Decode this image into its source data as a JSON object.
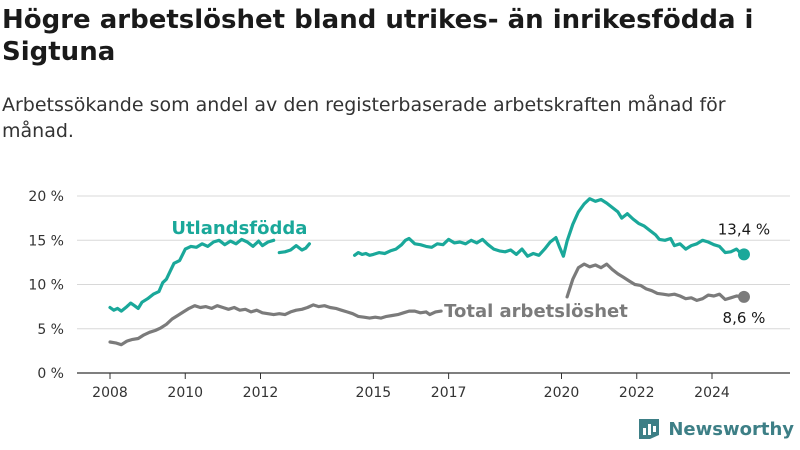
{
  "header": {
    "title": "Högre arbetslöshet bland utrikes- än inrikesfödda i Sigtuna",
    "subtitle": "Arbetssökande som andel av den registerbaserade arbetskraften månad för månad."
  },
  "brand": {
    "name": "Newsworthy",
    "icon": "newsworthy-logo-icon",
    "color": "#3d7f86"
  },
  "colors": {
    "utlandsfodda": "#1aa89a",
    "total": "#7b7b7b",
    "grid": "#d8d8d8",
    "axis": "#333333"
  },
  "chart_data": {
    "type": "line",
    "title": "Högre arbetslöshet bland utrikes- än inrikesfödda i Sigtuna",
    "subtitle": "Arbetssökande som andel av den registerbaserade arbetskraften månad för månad.",
    "x_ticks": [
      2008,
      2010,
      2012,
      2015,
      2017,
      2020,
      2022,
      2024
    ],
    "x_tick_labels": [
      "2008",
      "2010",
      "2012",
      "2015",
      "2017",
      "2020",
      "2022",
      "2024"
    ],
    "y_ticks": [
      0,
      5,
      10,
      15,
      20
    ],
    "y_tick_labels": [
      "0 %",
      "5 %",
      "10 %",
      "15 %",
      "20 %"
    ],
    "xlim": [
      2007.5,
      2025.5
    ],
    "ylim": [
      0,
      20
    ],
    "grid": "horizontal",
    "legend": "direct labels",
    "series": [
      {
        "name": "Utlandsfödda",
        "color": "#1aa89a",
        "end_label": "13,4 %",
        "segments": [
          [
            [
              2008.0,
              7.4
            ],
            [
              2008.1,
              7.1
            ],
            [
              2008.2,
              7.3
            ],
            [
              2008.3,
              7.0
            ],
            [
              2008.45,
              7.5
            ],
            [
              2008.55,
              7.9
            ],
            [
              2008.65,
              7.6
            ],
            [
              2008.75,
              7.3
            ],
            [
              2008.85,
              8.0
            ],
            [
              2009.0,
              8.4
            ],
            [
              2009.15,
              8.9
            ],
            [
              2009.3,
              9.2
            ],
            [
              2009.4,
              10.2
            ],
            [
              2009.5,
              10.6
            ],
            [
              2009.6,
              11.5
            ],
            [
              2009.7,
              12.4
            ],
            [
              2009.85,
              12.7
            ],
            [
              2010.0,
              14.0
            ],
            [
              2010.15,
              14.3
            ],
            [
              2010.3,
              14.2
            ],
            [
              2010.45,
              14.6
            ],
            [
              2010.6,
              14.3
            ],
            [
              2010.75,
              14.8
            ],
            [
              2010.9,
              15.0
            ],
            [
              2011.05,
              14.5
            ],
            [
              2011.2,
              14.9
            ],
            [
              2011.35,
              14.6
            ],
            [
              2011.5,
              15.1
            ],
            [
              2011.65,
              14.8
            ],
            [
              2011.8,
              14.3
            ],
            [
              2011.95,
              14.9
            ],
            [
              2012.05,
              14.4
            ],
            [
              2012.2,
              14.8
            ],
            [
              2012.35,
              15.0
            ]
          ],
          [
            [
              2012.5,
              13.6
            ],
            [
              2012.65,
              13.7
            ],
            [
              2012.8,
              13.9
            ],
            [
              2012.95,
              14.4
            ],
            [
              2013.1,
              13.9
            ],
            [
              2013.2,
              14.1
            ],
            [
              2013.3,
              14.6
            ]
          ],
          [
            [
              2014.5,
              13.3
            ],
            [
              2014.6,
              13.6
            ],
            [
              2014.7,
              13.4
            ],
            [
              2014.8,
              13.5
            ],
            [
              2014.9,
              13.3
            ],
            [
              2015.0,
              13.4
            ],
            [
              2015.15,
              13.6
            ],
            [
              2015.3,
              13.5
            ],
            [
              2015.45,
              13.8
            ],
            [
              2015.6,
              14.0
            ],
            [
              2015.75,
              14.5
            ],
            [
              2015.85,
              15.0
            ],
            [
              2015.95,
              15.2
            ],
            [
              2016.1,
              14.6
            ],
            [
              2016.25,
              14.5
            ],
            [
              2016.4,
              14.3
            ],
            [
              2016.55,
              14.2
            ],
            [
              2016.7,
              14.6
            ],
            [
              2016.85,
              14.5
            ],
            [
              2017.0,
              15.1
            ],
            [
              2017.15,
              14.7
            ],
            [
              2017.3,
              14.8
            ],
            [
              2017.45,
              14.6
            ],
            [
              2017.6,
              15.0
            ],
            [
              2017.75,
              14.7
            ],
            [
              2017.9,
              15.1
            ],
            [
              2018.05,
              14.5
            ],
            [
              2018.2,
              14.0
            ],
            [
              2018.35,
              13.8
            ],
            [
              2018.5,
              13.7
            ],
            [
              2018.65,
              13.9
            ],
            [
              2018.8,
              13.4
            ],
            [
              2018.95,
              14.0
            ],
            [
              2019.1,
              13.2
            ],
            [
              2019.25,
              13.5
            ],
            [
              2019.4,
              13.3
            ],
            [
              2019.55,
              14.0
            ],
            [
              2019.7,
              14.8
            ],
            [
              2019.85,
              15.3
            ],
            [
              2019.95,
              14.2
            ],
            [
              2020.05,
              13.2
            ],
            [
              2020.15,
              14.9
            ],
            [
              2020.3,
              16.8
            ],
            [
              2020.45,
              18.2
            ],
            [
              2020.6,
              19.1
            ],
            [
              2020.75,
              19.7
            ],
            [
              2020.9,
              19.4
            ],
            [
              2021.05,
              19.6
            ],
            [
              2021.2,
              19.2
            ],
            [
              2021.35,
              18.7
            ],
            [
              2021.5,
              18.2
            ],
            [
              2021.6,
              17.5
            ],
            [
              2021.75,
              18.0
            ],
            [
              2021.9,
              17.4
            ],
            [
              2022.05,
              16.9
            ],
            [
              2022.2,
              16.6
            ],
            [
              2022.35,
              16.1
            ],
            [
              2022.5,
              15.6
            ],
            [
              2022.6,
              15.1
            ],
            [
              2022.75,
              15.0
            ],
            [
              2022.9,
              15.2
            ],
            [
              2023.0,
              14.4
            ],
            [
              2023.15,
              14.6
            ],
            [
              2023.3,
              14.0
            ],
            [
              2023.45,
              14.4
            ],
            [
              2023.6,
              14.6
            ],
            [
              2023.75,
              15.0
            ],
            [
              2023.9,
              14.8
            ],
            [
              2024.05,
              14.5
            ],
            [
              2024.2,
              14.3
            ],
            [
              2024.35,
              13.6
            ],
            [
              2024.5,
              13.7
            ],
            [
              2024.65,
              14.0
            ],
            [
              2024.75,
              13.6
            ],
            [
              2024.85,
              13.4
            ]
          ]
        ]
      },
      {
        "name": "Total arbetslöshet",
        "color": "#7b7b7b",
        "end_label": "8,6 %",
        "segments": [
          [
            [
              2008.0,
              3.5
            ],
            [
              2008.15,
              3.4
            ],
            [
              2008.3,
              3.2
            ],
            [
              2008.45,
              3.6
            ],
            [
              2008.6,
              3.8
            ],
            [
              2008.75,
              3.9
            ],
            [
              2008.9,
              4.3
            ],
            [
              2009.05,
              4.6
            ],
            [
              2009.2,
              4.8
            ],
            [
              2009.35,
              5.1
            ],
            [
              2009.5,
              5.5
            ],
            [
              2009.65,
              6.1
            ],
            [
              2009.8,
              6.5
            ],
            [
              2009.95,
              6.9
            ],
            [
              2010.1,
              7.3
            ],
            [
              2010.25,
              7.6
            ],
            [
              2010.4,
              7.4
            ],
            [
              2010.55,
              7.5
            ],
            [
              2010.7,
              7.3
            ],
            [
              2010.85,
              7.6
            ],
            [
              2011.0,
              7.4
            ],
            [
              2011.15,
              7.2
            ],
            [
              2011.3,
              7.4
            ],
            [
              2011.45,
              7.1
            ],
            [
              2011.6,
              7.2
            ],
            [
              2011.75,
              6.9
            ],
            [
              2011.9,
              7.1
            ],
            [
              2012.05,
              6.8
            ],
            [
              2012.2,
              6.7
            ],
            [
              2012.35,
              6.6
            ],
            [
              2012.5,
              6.7
            ],
            [
              2012.65,
              6.6
            ],
            [
              2012.8,
              6.9
            ],
            [
              2012.95,
              7.1
            ],
            [
              2013.1,
              7.2
            ],
            [
              2013.25,
              7.4
            ],
            [
              2013.4,
              7.7
            ],
            [
              2013.55,
              7.5
            ],
            [
              2013.7,
              7.6
            ],
            [
              2013.85,
              7.4
            ],
            [
              2014.0,
              7.3
            ],
            [
              2014.15,
              7.1
            ],
            [
              2014.3,
              6.9
            ],
            [
              2014.45,
              6.7
            ],
            [
              2014.6,
              6.4
            ],
            [
              2014.75,
              6.3
            ],
            [
              2014.9,
              6.2
            ],
            [
              2015.05,
              6.3
            ],
            [
              2015.2,
              6.2
            ],
            [
              2015.35,
              6.4
            ],
            [
              2015.5,
              6.5
            ],
            [
              2015.65,
              6.6
            ],
            [
              2015.8,
              6.8
            ],
            [
              2015.95,
              7.0
            ],
            [
              2016.1,
              7.0
            ],
            [
              2016.25,
              6.8
            ],
            [
              2016.4,
              6.9
            ],
            [
              2016.5,
              6.6
            ],
            [
              2016.65,
              6.9
            ],
            [
              2016.8,
              7.0
            ]
          ],
          [
            [
              2020.15,
              8.6
            ],
            [
              2020.3,
              10.6
            ],
            [
              2020.45,
              11.9
            ],
            [
              2020.6,
              12.3
            ],
            [
              2020.75,
              12.0
            ],
            [
              2020.9,
              12.2
            ],
            [
              2021.05,
              11.9
            ],
            [
              2021.2,
              12.3
            ],
            [
              2021.35,
              11.7
            ],
            [
              2021.5,
              11.2
            ],
            [
              2021.65,
              10.8
            ],
            [
              2021.8,
              10.4
            ],
            [
              2021.95,
              10.0
            ],
            [
              2022.1,
              9.9
            ],
            [
              2022.25,
              9.5
            ],
            [
              2022.4,
              9.3
            ],
            [
              2022.55,
              9.0
            ],
            [
              2022.7,
              8.9
            ],
            [
              2022.85,
              8.8
            ],
            [
              2023.0,
              8.9
            ],
            [
              2023.15,
              8.7
            ],
            [
              2023.3,
              8.4
            ],
            [
              2023.45,
              8.5
            ],
            [
              2023.6,
              8.2
            ],
            [
              2023.75,
              8.4
            ],
            [
              2023.9,
              8.8
            ],
            [
              2024.05,
              8.7
            ],
            [
              2024.2,
              8.9
            ],
            [
              2024.35,
              8.3
            ],
            [
              2024.5,
              8.5
            ],
            [
              2024.65,
              8.7
            ],
            [
              2024.85,
              8.6
            ]
          ]
        ]
      }
    ]
  }
}
